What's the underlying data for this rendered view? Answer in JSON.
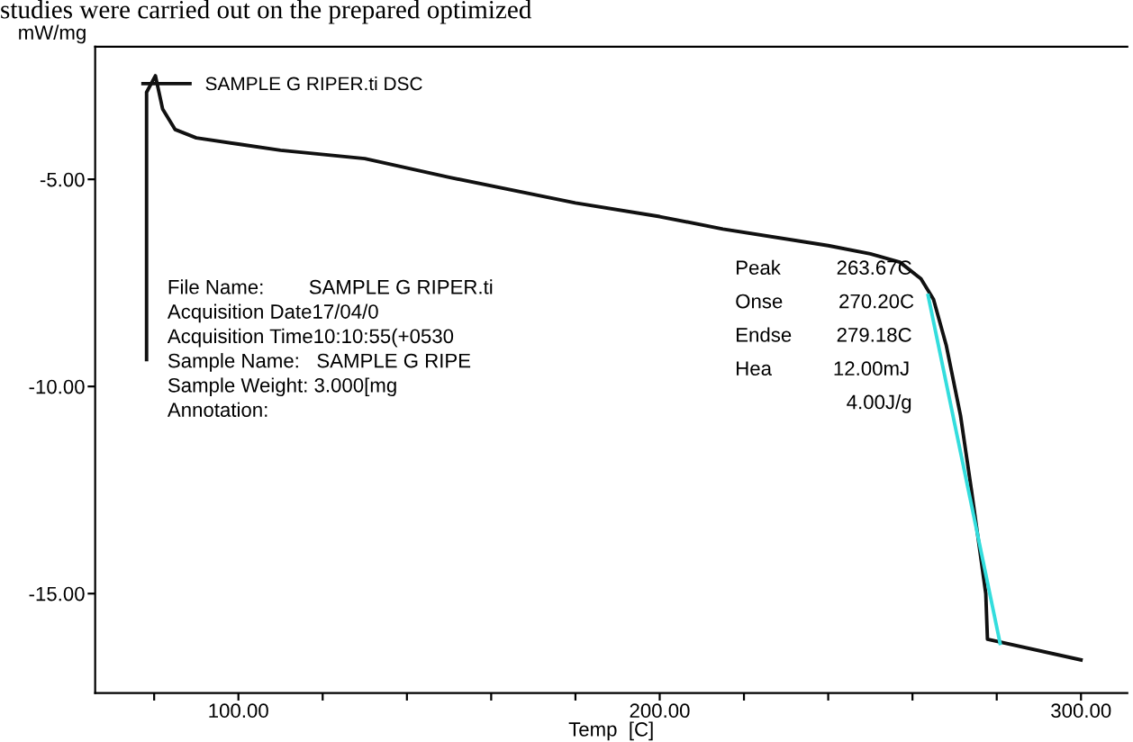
{
  "chart_data": {
    "type": "line",
    "xlabel": "Temp  [C]",
    "ylabel": "mW/mg",
    "series": [
      {
        "name": "SAMPLE G RIPER.ti DSC",
        "color": "#111111",
        "x": [
          78.2,
          78.2,
          80.3,
          82,
          85,
          90,
          100,
          110,
          130,
          150,
          180,
          200,
          215,
          240,
          250,
          257,
          262,
          265,
          268,
          271.4,
          274,
          277.4,
          277.8,
          300
        ],
        "values": [
          -9.35,
          -2.9,
          -2.5,
          -3.3,
          -3.8,
          -4.0,
          -4.15,
          -4.3,
          -4.5,
          -4.95,
          -5.57,
          -5.9,
          -6.2,
          -6.6,
          -6.8,
          -7.0,
          -7.4,
          -7.9,
          -9.0,
          -10.7,
          -12.5,
          -15.0,
          -16.1,
          -16.6
        ]
      },
      {
        "color": "#33dddd",
        "x": [
          263.7,
          280.8
        ],
        "values": [
          -7.8,
          -16.2
        ]
      }
    ],
    "xlim": [
      66,
      311
    ],
    "ylim": [
      -17.4,
      -1.8
    ],
    "xticks": [
      {
        "value": 80,
        "label": null
      },
      {
        "value": 100,
        "label": "100.00"
      },
      {
        "value": 120,
        "label": null
      },
      {
        "value": 140,
        "label": null
      },
      {
        "value": 160,
        "label": null
      },
      {
        "value": 180,
        "label": null
      },
      {
        "value": 200,
        "label": "200.00"
      },
      {
        "value": 220,
        "label": null
      },
      {
        "value": 240,
        "label": null
      },
      {
        "value": 260,
        "label": null
      },
      {
        "value": 280,
        "label": null
      },
      {
        "value": 300,
        "label": "300.00"
      }
    ],
    "yticks": [
      {
        "value": -5,
        "label": "-5.00"
      },
      {
        "value": -10,
        "label": "-10.00"
      },
      {
        "value": -15,
        "label": "-15.00"
      }
    ],
    "grid": false,
    "legend": "top left",
    "annotations": [
      "studies were carried out on the prepared optimized",
      "File Name:        SAMPLE G RIPER.ti",
      "Acquisition Date17/04/0",
      "Acquisition Time10:10:55(+0530",
      "Sample Name:   SAMPLE G RIPE",
      "Sample Weight: 3.000[mg",
      "Annotation:",
      "Peak          263.67C",
      "Onse          270.20C",
      "Endse        279.18C",
      "Hea           12.00mJ",
      "                    4.00J/g"
    ]
  }
}
